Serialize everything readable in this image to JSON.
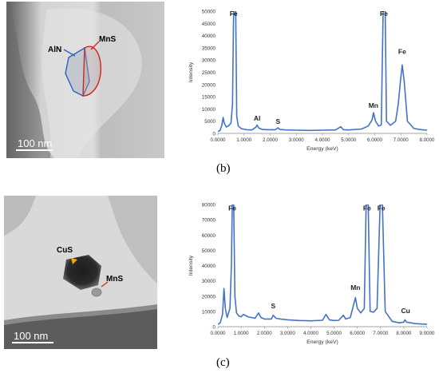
{
  "panels": [
    {
      "caption": "(b)",
      "micrograph": {
        "labels": [
          {
            "text": "AlN",
            "color": "#2f5fbf"
          },
          {
            "text": "MnS",
            "color": "#d0251f"
          }
        ],
        "scale_bar": "100 nm",
        "background": "#c9c9c9"
      }
    },
    {
      "caption": "(c)",
      "micrograph": {
        "labels": [
          {
            "text": "CuS",
            "color": "#f2a900"
          },
          {
            "text": "MnS",
            "color": "#d0251f"
          }
        ],
        "scale_bar": "100 nm",
        "background": "#d6d6d6"
      }
    }
  ],
  "chart_data": [
    {
      "type": "line",
      "title": "",
      "xlabel": "Energy (keV)",
      "ylabel": "Intensity",
      "xlim": [
        0,
        8
      ],
      "ylim": [
        0,
        50000
      ],
      "xticks": [
        "0.0000",
        "1.0000",
        "2.0000",
        "3.0000",
        "4.0000",
        "5.0000",
        "6.0000",
        "7.0000",
        "8.0000"
      ],
      "yticks": [
        "0",
        "5000",
        "10000",
        "15000",
        "20000",
        "25000",
        "30000",
        "35000",
        "40000",
        "45000",
        "50000"
      ],
      "grid": false,
      "line_color": "#4472c4",
      "series": [
        {
          "points": [
            [
              0.0,
              800
            ],
            [
              0.08,
              1200
            ],
            [
              0.15,
              3200
            ],
            [
              0.2,
              6500
            ],
            [
              0.25,
              4000
            ],
            [
              0.32,
              2600
            ],
            [
              0.4,
              3000
            ],
            [
              0.5,
              4200
            ],
            [
              0.56,
              12000
            ],
            [
              0.6,
              50000
            ],
            [
              0.64,
              50000
            ],
            [
              0.68,
              50000
            ],
            [
              0.72,
              7000
            ],
            [
              0.78,
              3000
            ],
            [
              0.9,
              1900
            ],
            [
              1.1,
              1500
            ],
            [
              1.3,
              1400
            ],
            [
              1.45,
              2500
            ],
            [
              1.5,
              3400
            ],
            [
              1.56,
              2200
            ],
            [
              1.7,
              1600
            ],
            [
              1.9,
              1500
            ],
            [
              2.2,
              1500
            ],
            [
              2.3,
              2300
            ],
            [
              2.38,
              1600
            ],
            [
              2.6,
              1400
            ],
            [
              3.0,
              1300
            ],
            [
              3.5,
              1200
            ],
            [
              4.0,
              1300
            ],
            [
              4.5,
              1400
            ],
            [
              4.7,
              2700
            ],
            [
              4.8,
              1500
            ],
            [
              5.0,
              1400
            ],
            [
              5.5,
              1800
            ],
            [
              5.75,
              3000
            ],
            [
              5.9,
              5500
            ],
            [
              5.95,
              8500
            ],
            [
              6.03,
              5000
            ],
            [
              6.15,
              3000
            ],
            [
              6.25,
              3500
            ],
            [
              6.32,
              50000
            ],
            [
              6.4,
              50000
            ],
            [
              6.45,
              5000
            ],
            [
              6.6,
              3300
            ],
            [
              6.8,
              5000
            ],
            [
              6.9,
              12000
            ],
            [
              6.98,
              21000
            ],
            [
              7.05,
              28000
            ],
            [
              7.13,
              21000
            ],
            [
              7.25,
              5000
            ],
            [
              7.5,
              2000
            ],
            [
              7.8,
              1500
            ],
            [
              8.0,
              1300
            ]
          ]
        }
      ],
      "annotations": [
        {
          "text": "Fe",
          "x": 0.6,
          "y": 48000
        },
        {
          "text": "Al",
          "x": 1.5,
          "y": 5200
        },
        {
          "text": "S",
          "x": 2.3,
          "y": 4000
        },
        {
          "text": "Mn",
          "x": 5.95,
          "y": 10500
        },
        {
          "text": "Fe",
          "x": 6.35,
          "y": 48000
        },
        {
          "text": "Fe",
          "x": 7.05,
          "y": 32500
        }
      ]
    },
    {
      "type": "line",
      "title": "",
      "xlabel": "Energy (keV)",
      "ylabel": "Intensity",
      "xlim": [
        0,
        9
      ],
      "ylim": [
        0,
        80000
      ],
      "xticks": [
        "0.0000",
        "1.0000",
        "2.0000",
        "3.0000",
        "4.0000",
        "5.0000",
        "6.0000",
        "7.0000",
        "8.0000",
        "9.0000"
      ],
      "yticks": [
        "0",
        "10000",
        "20000",
        "30000",
        "40000",
        "50000",
        "60000",
        "70000",
        "80000"
      ],
      "grid": false,
      "line_color": "#4472c4",
      "series": [
        {
          "points": [
            [
              0.0,
              1500
            ],
            [
              0.1,
              2500
            ],
            [
              0.2,
              8000
            ],
            [
              0.26,
              25000
            ],
            [
              0.32,
              12000
            ],
            [
              0.4,
              6000
            ],
            [
              0.52,
              12000
            ],
            [
              0.58,
              40000
            ],
            [
              0.62,
              80000
            ],
            [
              0.68,
              80000
            ],
            [
              0.73,
              20000
            ],
            [
              0.8,
              9000
            ],
            [
              0.9,
              7000
            ],
            [
              1.0,
              6500
            ],
            [
              1.1,
              8000
            ],
            [
              1.3,
              6500
            ],
            [
              1.6,
              5500
            ],
            [
              1.75,
              9000
            ],
            [
              1.85,
              6000
            ],
            [
              2.0,
              5000
            ],
            [
              2.3,
              5000
            ],
            [
              2.38,
              7500
            ],
            [
              2.5,
              5500
            ],
            [
              2.7,
              5000
            ],
            [
              3.0,
              4500
            ],
            [
              3.5,
              4000
            ],
            [
              4.0,
              3800
            ],
            [
              4.5,
              4200
            ],
            [
              4.65,
              8000
            ],
            [
              4.8,
              4500
            ],
            [
              5.0,
              4000
            ],
            [
              5.2,
              4200
            ],
            [
              5.4,
              7500
            ],
            [
              5.5,
              5000
            ],
            [
              5.7,
              6000
            ],
            [
              5.85,
              15000
            ],
            [
              5.92,
              19000
            ],
            [
              6.0,
              12000
            ],
            [
              6.15,
              9000
            ],
            [
              6.3,
              12000
            ],
            [
              6.38,
              80000
            ],
            [
              6.47,
              80000
            ],
            [
              6.55,
              10000
            ],
            [
              6.7,
              9500
            ],
            [
              6.85,
              12000
            ],
            [
              6.98,
              80000
            ],
            [
              7.08,
              80000
            ],
            [
              7.2,
              10000
            ],
            [
              7.5,
              3500
            ],
            [
              7.8,
              2500
            ],
            [
              8.0,
              3000
            ],
            [
              8.05,
              4500
            ],
            [
              8.12,
              3000
            ],
            [
              8.5,
              2000
            ],
            [
              9.0,
              1500
            ]
          ]
        }
      ],
      "annotations": [
        {
          "text": "Fe",
          "x": 0.62,
          "y": 76000
        },
        {
          "text": "S",
          "x": 2.38,
          "y": 12000
        },
        {
          "text": "Mn",
          "x": 5.92,
          "y": 24000
        },
        {
          "text": "Fe",
          "x": 6.42,
          "y": 76000
        },
        {
          "text": "Fe",
          "x": 7.03,
          "y": 76000
        },
        {
          "text": "Cu",
          "x": 8.08,
          "y": 9000
        }
      ]
    }
  ]
}
